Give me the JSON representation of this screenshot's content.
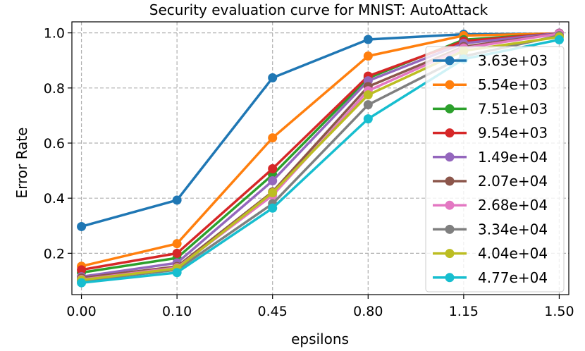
{
  "chart_data": {
    "type": "line",
    "title": "Security evaluation curve for MNIST: AutoAttack",
    "xlabel": "epsilons",
    "ylabel": "Error Rate",
    "categories": [
      "0.00",
      "0.10",
      "0.45",
      "0.80",
      "1.15",
      "1.50"
    ],
    "ylim": [
      0.05,
      1.04
    ],
    "yticks": [
      "0.2",
      "0.4",
      "0.6",
      "0.8",
      "1.0"
    ],
    "grid": true,
    "legend_position": "right",
    "series": [
      {
        "name": "3.63e+03",
        "color": "#1f77b4",
        "values": [
          0.297,
          0.393,
          0.837,
          0.976,
          0.995,
          0.997
        ]
      },
      {
        "name": "5.54e+03",
        "color": "#ff7f0e",
        "values": [
          0.153,
          0.235,
          0.619,
          0.916,
          0.99,
          0.998
        ]
      },
      {
        "name": "7.51e+03",
        "color": "#2ca02c",
        "values": [
          0.13,
          0.183,
          0.485,
          0.836,
          0.975,
          0.998
        ]
      },
      {
        "name": "9.54e+03",
        "color": "#d62728",
        "values": [
          0.14,
          0.2,
          0.507,
          0.843,
          0.97,
          0.999
        ]
      },
      {
        "name": "1.49e+04",
        "color": "#9467bd",
        "values": [
          0.115,
          0.165,
          0.463,
          0.826,
          0.962,
          0.999
        ]
      },
      {
        "name": "2.07e+04",
        "color": "#8c564b",
        "values": [
          0.11,
          0.152,
          0.423,
          0.805,
          0.95,
          0.998
        ]
      },
      {
        "name": "2.68e+04",
        "color": "#e377c2",
        "values": [
          0.105,
          0.148,
          0.41,
          0.79,
          0.945,
          0.997
        ]
      },
      {
        "name": "3.34e+04",
        "color": "#7f7f7f",
        "values": [
          0.1,
          0.14,
          0.38,
          0.739,
          0.915,
          0.99
        ]
      },
      {
        "name": "4.04e+04",
        "color": "#bcbd22",
        "values": [
          0.103,
          0.145,
          0.42,
          0.775,
          0.935,
          0.985
        ]
      },
      {
        "name": "4.77e+04",
        "color": "#17becf",
        "values": [
          0.093,
          0.13,
          0.364,
          0.688,
          0.905,
          0.975
        ]
      }
    ]
  }
}
